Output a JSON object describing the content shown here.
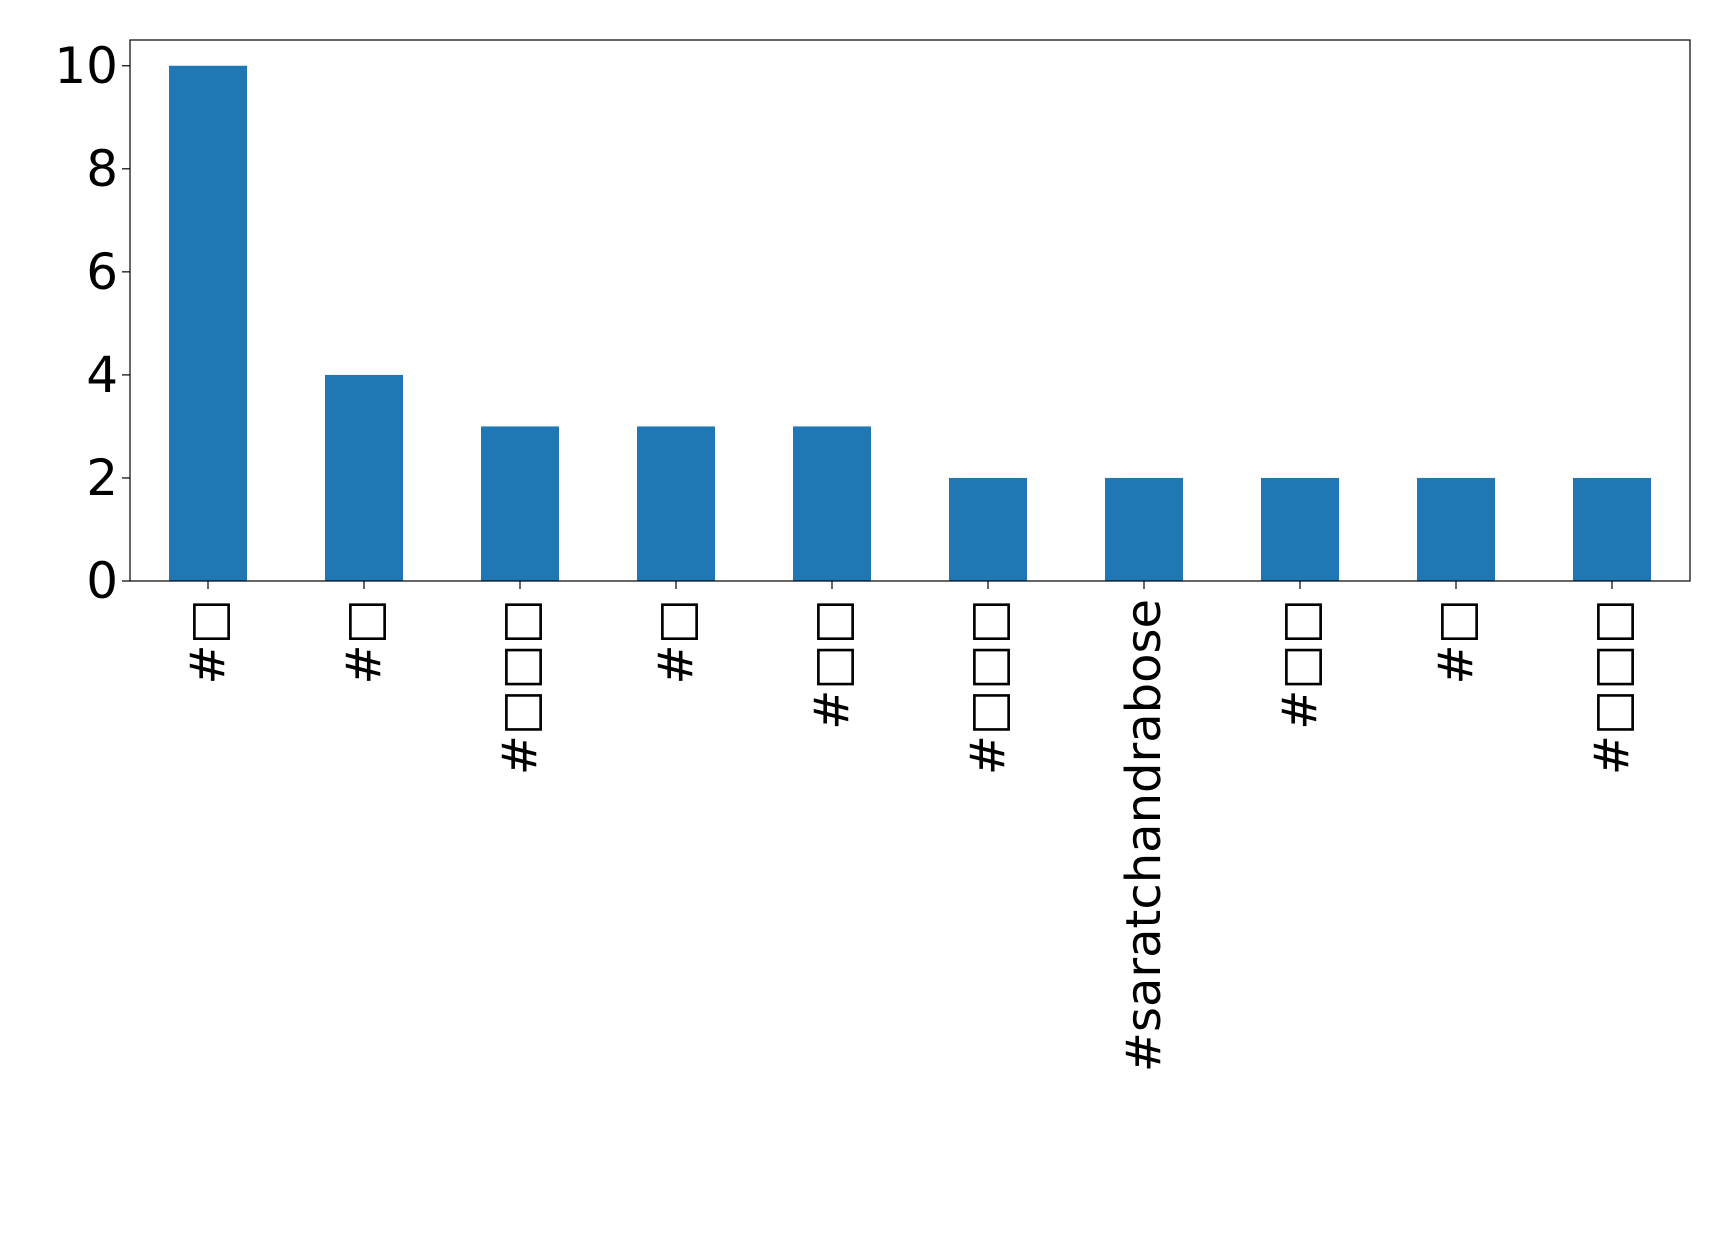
{
  "chart_data": {
    "type": "bar",
    "title": "",
    "xlabel": "",
    "ylabel": "",
    "categories": [
      "#□",
      "#□",
      "#□□□",
      "#□",
      "#□□",
      "#□□□",
      "#saratchandrabose",
      "#□□",
      "#□",
      "#□□□"
    ],
    "values": [
      10,
      4,
      3,
      3,
      3,
      2,
      2,
      2,
      2,
      2
    ],
    "ylim": [
      0,
      10.5
    ],
    "yticks": [
      0,
      2,
      4,
      6,
      8,
      10
    ],
    "grid": false,
    "legend": "none",
    "bar_color": "#1f77b4",
    "axis_color": "#000000"
  }
}
